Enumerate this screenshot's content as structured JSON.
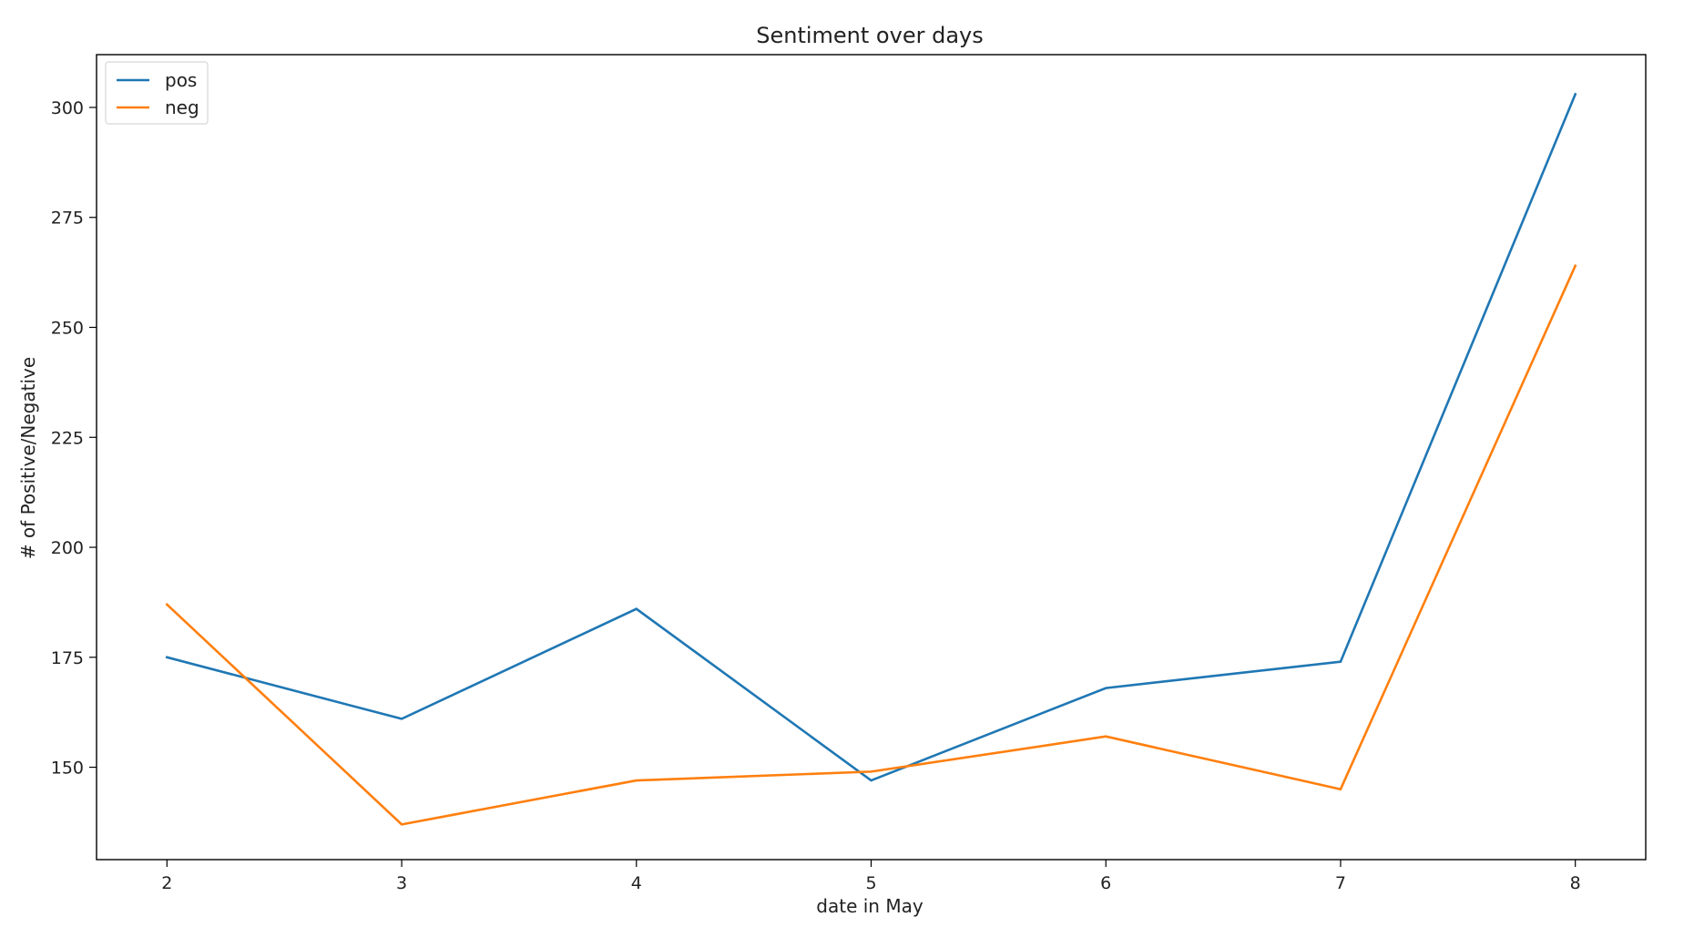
{
  "chart_data": {
    "type": "line",
    "title": "Sentiment over days",
    "xlabel": "date in May",
    "ylabel": "# of Positive/Negative",
    "x": [
      2,
      3,
      4,
      5,
      6,
      7,
      8
    ],
    "x_ticks": [
      2,
      3,
      4,
      5,
      6,
      7,
      8
    ],
    "y_ticks": [
      150,
      175,
      200,
      225,
      250,
      275,
      300
    ],
    "xlim": [
      1.7,
      8.3
    ],
    "ylim": [
      129,
      312
    ],
    "grid": false,
    "legend": {
      "placement": "top-left"
    },
    "series": [
      {
        "name": "pos",
        "color": "#1f77b4",
        "values": [
          175,
          161,
          186,
          147,
          168,
          174,
          303
        ]
      },
      {
        "name": "neg",
        "color": "#ff7f0e",
        "values": [
          187,
          137,
          147,
          149,
          157,
          145,
          264
        ]
      }
    ]
  }
}
